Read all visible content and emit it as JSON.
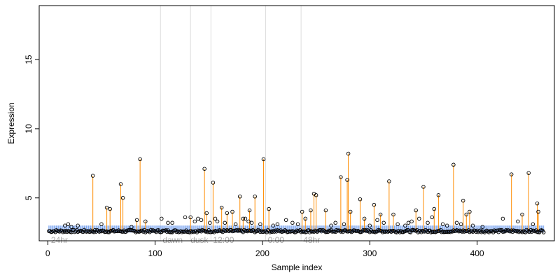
{
  "chart_data": {
    "type": "scatter",
    "xlabel": "Sample index",
    "ylabel": "Expression",
    "xlim": [
      -8,
      472
    ],
    "ylim": [
      1.9,
      18.9
    ],
    "x_ticks": [
      0,
      100,
      200,
      300,
      400
    ],
    "y_ticks": [
      5,
      10,
      15
    ],
    "n_samples": 462,
    "baseline_level": 2.6,
    "baseline_band": [
      2.5,
      3.0
    ],
    "grid": false,
    "section_dividers": [
      105,
      133,
      152,
      203,
      236
    ],
    "section_labels": [
      {
        "x": 3,
        "label": "24hr"
      },
      {
        "x": 107,
        "label": "dawn"
      },
      {
        "x": 133,
        "label": "dusk"
      },
      {
        "x": 154,
        "label": "12:00"
      },
      {
        "x": 205,
        "label": "0:00"
      },
      {
        "x": 238,
        "label": "48hr"
      }
    ],
    "peaks": [
      {
        "x": 42,
        "y": 6.6
      },
      {
        "x": 55,
        "y": 4.3
      },
      {
        "x": 58,
        "y": 4.2
      },
      {
        "x": 68,
        "y": 6.0
      },
      {
        "x": 70,
        "y": 5.0
      },
      {
        "x": 83,
        "y": 3.4
      },
      {
        "x": 86,
        "y": 7.8
      },
      {
        "x": 91,
        "y": 3.3
      },
      {
        "x": 133,
        "y": 3.6
      },
      {
        "x": 146,
        "y": 7.1
      },
      {
        "x": 148,
        "y": 3.9
      },
      {
        "x": 154,
        "y": 6.1
      },
      {
        "x": 162,
        "y": 4.3
      },
      {
        "x": 167,
        "y": 3.9
      },
      {
        "x": 172,
        "y": 4.0
      },
      {
        "x": 179,
        "y": 5.1
      },
      {
        "x": 182,
        "y": 3.5
      },
      {
        "x": 188,
        "y": 4.1
      },
      {
        "x": 193,
        "y": 5.1
      },
      {
        "x": 201,
        "y": 7.8
      },
      {
        "x": 206,
        "y": 4.2
      },
      {
        "x": 237,
        "y": 4.0
      },
      {
        "x": 240,
        "y": 3.5
      },
      {
        "x": 245,
        "y": 4.1
      },
      {
        "x": 248,
        "y": 5.3
      },
      {
        "x": 250,
        "y": 5.2
      },
      {
        "x": 259,
        "y": 4.1
      },
      {
        "x": 273,
        "y": 6.5
      },
      {
        "x": 279,
        "y": 6.3
      },
      {
        "x": 280,
        "y": 8.2
      },
      {
        "x": 282,
        "y": 4.0
      },
      {
        "x": 291,
        "y": 4.9
      },
      {
        "x": 295,
        "y": 3.5
      },
      {
        "x": 304,
        "y": 4.5
      },
      {
        "x": 310,
        "y": 3.8
      },
      {
        "x": 318,
        "y": 6.2
      },
      {
        "x": 322,
        "y": 3.8
      },
      {
        "x": 343,
        "y": 4.1
      },
      {
        "x": 350,
        "y": 5.8
      },
      {
        "x": 360,
        "y": 4.2
      },
      {
        "x": 364,
        "y": 5.2
      },
      {
        "x": 378,
        "y": 7.4
      },
      {
        "x": 387,
        "y": 4.8
      },
      {
        "x": 390,
        "y": 3.8
      },
      {
        "x": 393,
        "y": 4.0
      },
      {
        "x": 432,
        "y": 6.7
      },
      {
        "x": 442,
        "y": 3.8
      },
      {
        "x": 448,
        "y": 6.8
      },
      {
        "x": 456,
        "y": 4.6
      },
      {
        "x": 457,
        "y": 4.0
      }
    ],
    "scattered_points": [
      {
        "x": 16,
        "y": 3.0
      },
      {
        "x": 19,
        "y": 3.1
      },
      {
        "x": 22,
        "y": 2.9
      },
      {
        "x": 28,
        "y": 3.0
      },
      {
        "x": 50,
        "y": 3.1
      },
      {
        "x": 78,
        "y": 2.9
      },
      {
        "x": 106,
        "y": 3.5
      },
      {
        "x": 112,
        "y": 3.2
      },
      {
        "x": 116,
        "y": 3.2
      },
      {
        "x": 128,
        "y": 3.6
      },
      {
        "x": 137,
        "y": 3.3
      },
      {
        "x": 140,
        "y": 3.5
      },
      {
        "x": 143,
        "y": 3.4
      },
      {
        "x": 151,
        "y": 3.2
      },
      {
        "x": 156,
        "y": 3.5
      },
      {
        "x": 158,
        "y": 3.3
      },
      {
        "x": 165,
        "y": 3.2
      },
      {
        "x": 175,
        "y": 3.1
      },
      {
        "x": 184,
        "y": 3.5
      },
      {
        "x": 187,
        "y": 3.3
      },
      {
        "x": 190,
        "y": 3.2
      },
      {
        "x": 198,
        "y": 3.1
      },
      {
        "x": 210,
        "y": 3.0
      },
      {
        "x": 214,
        "y": 3.1
      },
      {
        "x": 222,
        "y": 3.4
      },
      {
        "x": 228,
        "y": 3.2
      },
      {
        "x": 233,
        "y": 3.1
      },
      {
        "x": 264,
        "y": 3.0
      },
      {
        "x": 268,
        "y": 3.2
      },
      {
        "x": 276,
        "y": 3.1
      },
      {
        "x": 300,
        "y": 3.0
      },
      {
        "x": 307,
        "y": 3.4
      },
      {
        "x": 313,
        "y": 3.2
      },
      {
        "x": 326,
        "y": 3.1
      },
      {
        "x": 333,
        "y": 3.0
      },
      {
        "x": 336,
        "y": 3.2
      },
      {
        "x": 339,
        "y": 3.3
      },
      {
        "x": 346,
        "y": 3.5
      },
      {
        "x": 354,
        "y": 3.2
      },
      {
        "x": 358,
        "y": 3.6
      },
      {
        "x": 368,
        "y": 3.1
      },
      {
        "x": 372,
        "y": 3.0
      },
      {
        "x": 381,
        "y": 3.2
      },
      {
        "x": 385,
        "y": 3.1
      },
      {
        "x": 396,
        "y": 3.0
      },
      {
        "x": 405,
        "y": 2.9
      },
      {
        "x": 424,
        "y": 3.5
      },
      {
        "x": 438,
        "y": 3.3
      },
      {
        "x": 452,
        "y": 3.1
      }
    ],
    "colors": {
      "points": "#000000",
      "peak_lines": "#ff8c00",
      "baseline_band": "#6495ed",
      "dividers": "#dddddd",
      "section_labels": "#aaaaaa",
      "axis": "#000000"
    }
  }
}
